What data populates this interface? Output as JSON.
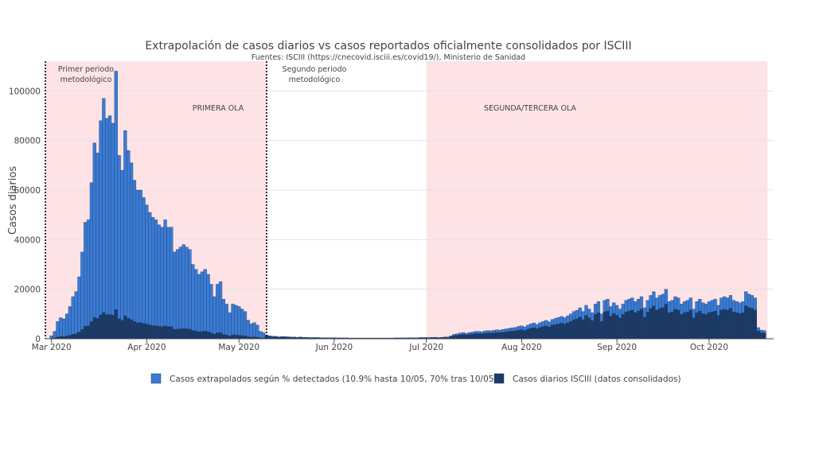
{
  "chart_data": {
    "type": "bar",
    "barmode": "overlay",
    "title": "Extrapolación de casos diarios vs casos reportados oficialmente consolidados por ISCIII",
    "subtitle": "Fuentes: ISCIII (https://cnecovid.isciii.es/covid19/), Ministerio de Sanidad",
    "xlabel": "",
    "ylabel": "Casos diarios",
    "ylim": [
      0,
      112000
    ],
    "yticks": [
      0,
      20000,
      40000,
      60000,
      80000,
      100000
    ],
    "ytick_labels": [
      "0",
      "20000",
      "40000",
      "60000",
      "80000",
      "100000"
    ],
    "xlim": [
      "2020-02-28",
      "2020-10-22"
    ],
    "xticks": [
      "2020-03-01",
      "2020-04-01",
      "2020-05-01",
      "2020-06-01",
      "2020-07-01",
      "2020-08-01",
      "2020-09-01",
      "2020-10-01"
    ],
    "xtick_labels": [
      "Mar 2020",
      "Apr 2020",
      "May 2020",
      "Jun 2020",
      "Jul 2020",
      "Aug 2020",
      "Sep 2020",
      "Oct 2020"
    ],
    "start_date": "2020-03-01",
    "grid": true,
    "legend_position": "bottom",
    "series": [
      {
        "name": "Casos extrapolados según % detectados (10.9% hasta 10/05, 70% tras 10/05)",
        "color": "#3A7BD5",
        "values": [
          1200,
          3000,
          7000,
          8500,
          8000,
          10000,
          13000,
          17000,
          19000,
          25000,
          35000,
          47000,
          48000,
          63000,
          79000,
          75000,
          88000,
          97000,
          89000,
          90000,
          87000,
          108000,
          74000,
          68000,
          84000,
          76000,
          71000,
          64000,
          60000,
          60000,
          57000,
          54000,
          51000,
          49000,
          48000,
          46000,
          45000,
          48000,
          45000,
          45000,
          35000,
          36000,
          37000,
          38000,
          37000,
          36000,
          30000,
          28000,
          26000,
          27000,
          28000,
          26000,
          22000,
          17000,
          22000,
          23000,
          16000,
          14000,
          10500,
          14000,
          13500,
          13000,
          12000,
          11000,
          7500,
          6000,
          6500,
          5500,
          3000,
          2500,
          1500,
          1200,
          1000,
          1000,
          800,
          900,
          900,
          800,
          700,
          700,
          600,
          700,
          600,
          600,
          500,
          500,
          500,
          500,
          400,
          400,
          400,
          400,
          400,
          350,
          350,
          350,
          350,
          300,
          300,
          300,
          300,
          300,
          300,
          300,
          300,
          300,
          300,
          300,
          300,
          300,
          300,
          300,
          350,
          350,
          350,
          350,
          400,
          400,
          400,
          400,
          500,
          500,
          500,
          500,
          600,
          600,
          500,
          600,
          700,
          700,
          1200,
          1800,
          2000,
          2300,
          2500,
          2200,
          2500,
          2700,
          3000,
          3000,
          2800,
          3100,
          3300,
          3200,
          3400,
          3600,
          3500,
          3800,
          4000,
          4200,
          4400,
          4600,
          5000,
          5200,
          4800,
          5500,
          6000,
          6400,
          5800,
          6500,
          7000,
          7400,
          6800,
          7800,
          8200,
          8600,
          9000,
          8500,
          9200,
          10000,
          11000,
          11500,
          12500,
          11000,
          13500,
          12000,
          10500,
          14000,
          15000,
          10000,
          15500,
          16000,
          13000,
          14500,
          13500,
          12000,
          14000,
          15500,
          16000,
          16500,
          15000,
          16000,
          17000,
          12500,
          15500,
          17500,
          19000,
          16500,
          17500,
          18000,
          20000,
          15000,
          15500,
          17000,
          16500,
          14000,
          15000,
          15500,
          16500,
          12000,
          15000,
          16000,
          14500,
          14000,
          15000,
          15500,
          16000,
          13500,
          16500,
          17000,
          16500,
          17500,
          15500,
          15000,
          14500,
          15000,
          19000,
          18000,
          17500,
          16500,
          4500,
          3500,
          3300
        ]
      },
      {
        "name": "Casos diarios ISCIII (datos consolidados)",
        "color": "#1B3A66",
        "values": [
          130,
          330,
          760,
          930,
          870,
          1090,
          1420,
          1850,
          2070,
          2730,
          3800,
          5100,
          5200,
          6900,
          8600,
          8200,
          9600,
          10600,
          9700,
          9800,
          9500,
          11800,
          8100,
          7400,
          9200,
          8300,
          7700,
          7000,
          6500,
          6500,
          6200,
          5900,
          5600,
          5300,
          5200,
          5000,
          4900,
          5200,
          4900,
          4900,
          3800,
          3900,
          4000,
          4100,
          4000,
          3900,
          3300,
          3100,
          2800,
          2900,
          3100,
          2800,
          2400,
          1900,
          2400,
          2500,
          1700,
          1500,
          1100,
          1500,
          1500,
          1400,
          1300,
          1200,
          800,
          650,
          700,
          600,
          330,
          270,
          1050,
          840,
          700,
          700,
          560,
          630,
          630,
          560,
          490,
          490,
          420,
          490,
          420,
          420,
          350,
          350,
          350,
          350,
          280,
          280,
          280,
          280,
          280,
          250,
          250,
          250,
          250,
          210,
          210,
          210,
          210,
          210,
          210,
          210,
          210,
          210,
          210,
          210,
          210,
          210,
          210,
          210,
          250,
          250,
          250,
          250,
          280,
          280,
          280,
          280,
          350,
          350,
          350,
          350,
          420,
          420,
          350,
          420,
          490,
          490,
          840,
          1260,
          1400,
          1610,
          1750,
          1540,
          1750,
          1890,
          2100,
          2100,
          1960,
          2170,
          2310,
          2240,
          2380,
          2520,
          2450,
          2660,
          2800,
          2940,
          3080,
          3220,
          3500,
          3640,
          3360,
          3850,
          4200,
          4480,
          4060,
          4550,
          4900,
          5180,
          4760,
          5460,
          5740,
          6020,
          6300,
          5950,
          6440,
          7000,
          7700,
          8050,
          8750,
          7700,
          9450,
          8400,
          7350,
          9800,
          10500,
          7000,
          10850,
          11200,
          9100,
          10150,
          9450,
          8400,
          9800,
          10850,
          11200,
          11550,
          10500,
          11200,
          11900,
          8750,
          10850,
          12250,
          13300,
          11550,
          12250,
          12600,
          14000,
          10500,
          10850,
          11900,
          11550,
          9800,
          10500,
          10850,
          11550,
          8400,
          10500,
          11200,
          10150,
          9800,
          10500,
          10850,
          11200,
          9450,
          11550,
          11900,
          11550,
          12250,
          10850,
          10500,
          10150,
          10500,
          13300,
          12600,
          12250,
          11550,
          3150,
          2450,
          2310
        ]
      }
    ],
    "annotations": [
      {
        "line1": "Primer periodo",
        "line2": "metodológico"
      },
      {
        "line1": "Segundo periodo",
        "line2": "metodológico"
      },
      {
        "line1": "PRIMERA OLA",
        "line2": ""
      },
      {
        "line1": "SEGUNDA/TERCERA OLA",
        "line2": ""
      }
    ],
    "shaded_regions": [
      {
        "label": "PRIMERA OLA",
        "from": "2020-02-28",
        "to": "2020-05-10",
        "color": "#FDE3E6"
      },
      {
        "label": "SEGUNDA/TERCERA OLA",
        "from": "2020-07-01",
        "to": "2020-10-20",
        "color": "#FDE3E6"
      }
    ],
    "vertical_lines": [
      {
        "date": "2020-02-28",
        "style": "dotted"
      },
      {
        "date": "2020-05-10",
        "style": "dotted"
      }
    ]
  }
}
